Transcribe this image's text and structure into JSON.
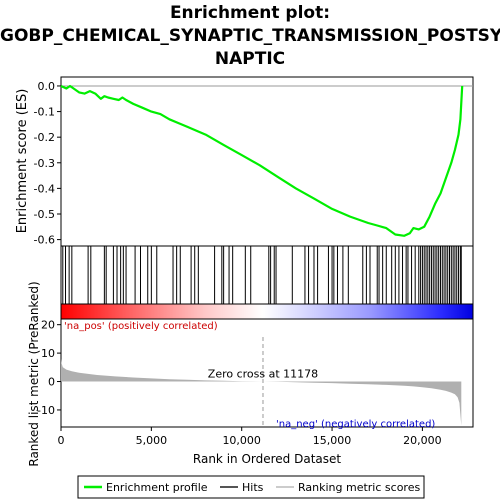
{
  "title_lines": [
    "Enrichment plot:",
    "GOBP_CHEMICAL_SYNAPTIC_TRANSMISSION_POSTSY",
    "NAPTIC"
  ],
  "colors": {
    "es_line": "#00ee00",
    "hits": "#000000",
    "pos_label": "#cc0000",
    "neg_label": "#0000cc",
    "metric_fill": "#b0b0b0",
    "zero_cross_line": "#999999"
  },
  "chart_data": {
    "type": "line",
    "xlabel": "Rank in Ordered Dataset",
    "xlim": [
      0,
      22800
    ],
    "x_ticks": [
      0,
      5000,
      10000,
      15000,
      20000
    ],
    "x_tick_labels": [
      "0",
      "5,000",
      "10,000",
      "15,000",
      "20,000"
    ],
    "es_panel": {
      "ylabel": "Enrichment score (ES)",
      "ylim": [
        -0.625,
        0.035
      ],
      "y_ticks": [
        0.0,
        -0.1,
        -0.2,
        -0.3,
        -0.4,
        -0.5,
        -0.6
      ],
      "y_tick_labels": [
        "0.0",
        "-0.1",
        "-0.2",
        "-0.3",
        "-0.4",
        "-0.5",
        "-0.6"
      ],
      "series": [
        {
          "name": "Enrichment profile",
          "x": [
            0,
            300,
            500,
            700,
            1000,
            1300,
            1600,
            1900,
            2200,
            2400,
            2600,
            2900,
            3200,
            3400,
            3600,
            4000,
            4500,
            5000,
            5500,
            6000,
            6500,
            7000,
            7500,
            8000,
            9000,
            10000,
            11000,
            12000,
            13000,
            14000,
            15000,
            16000,
            17000,
            17500,
            18000,
            18500,
            19000,
            19300,
            19500,
            19800,
            20100,
            20400,
            20700,
            21000,
            21200,
            21400,
            21600,
            21800,
            22000,
            22100,
            22200
          ],
          "y": [
            0.0,
            -0.01,
            0.0,
            -0.01,
            -0.025,
            -0.03,
            -0.02,
            -0.03,
            -0.05,
            -0.04,
            -0.045,
            -0.05,
            -0.055,
            -0.045,
            -0.055,
            -0.07,
            -0.085,
            -0.1,
            -0.11,
            -0.13,
            -0.145,
            -0.16,
            -0.175,
            -0.19,
            -0.23,
            -0.27,
            -0.31,
            -0.355,
            -0.4,
            -0.44,
            -0.48,
            -0.51,
            -0.535,
            -0.545,
            -0.555,
            -0.58,
            -0.585,
            -0.575,
            -0.555,
            -0.56,
            -0.55,
            -0.51,
            -0.46,
            -0.42,
            -0.38,
            -0.34,
            -0.3,
            -0.25,
            -0.19,
            -0.13,
            0.0
          ]
        }
      ]
    },
    "hits_x": [
      100,
      250,
      450,
      600,
      1500,
      1650,
      2400,
      2500,
      2900,
      3100,
      3300,
      3450,
      3600,
      4100,
      4400,
      4800,
      5000,
      5300,
      6200,
      6400,
      6600,
      7200,
      7400,
      7600,
      8500,
      8900,
      9000,
      9300,
      9500,
      10200,
      10500,
      11500,
      11600,
      11800,
      11900,
      12800,
      13500,
      13700,
      14000,
      14200,
      14800,
      15000,
      15100,
      15300,
      15600,
      15900,
      16700,
      16900,
      17100,
      17500,
      17600,
      17800,
      18000,
      18300,
      18500,
      18700,
      18900,
      19100,
      19200,
      19400,
      19600,
      19800,
      19900,
      20000,
      20100,
      20200,
      20300,
      20400,
      20500,
      20600,
      20700,
      20800,
      20900,
      21000,
      21100,
      21200,
      21300,
      21400,
      21500,
      21600,
      21700,
      21800,
      21900,
      22000,
      22100,
      22150
    ],
    "metric_panel": {
      "ylabel": "Ranked list metric (PreRanked)",
      "ylim": [
        -16,
        22
      ],
      "y_ticks": [
        20,
        10,
        0,
        -10
      ],
      "y_tick_labels": [
        "20",
        "10",
        "0",
        "-10"
      ],
      "zero_cross": 11178,
      "zero_cross_label": "Zero cross at 11178",
      "pos_label": "'na_pos' (positively correlated)",
      "neg_label": "'na_neg' (negatively correlated)",
      "x": [
        0,
        30,
        100,
        300,
        600,
        1000,
        1500,
        2000,
        3000,
        4000,
        5000,
        6000,
        7000,
        8000,
        9000,
        10000,
        11178,
        12000,
        13000,
        14000,
        15000,
        16000,
        17000,
        18000,
        19000,
        19500,
        20000,
        20500,
        21000,
        21300,
        21600,
        21800,
        21950,
        22050,
        22150
      ],
      "y": [
        8.0,
        6.5,
        5.0,
        4.2,
        3.6,
        3.1,
        2.7,
        2.3,
        1.8,
        1.4,
        1.1,
        0.8,
        0.6,
        0.4,
        0.25,
        0.12,
        0.0,
        -0.1,
        -0.25,
        -0.4,
        -0.55,
        -0.75,
        -0.95,
        -1.2,
        -1.5,
        -1.7,
        -2.0,
        -2.4,
        -2.9,
        -3.3,
        -3.9,
        -4.5,
        -5.5,
        -7.5,
        -15.5
      ]
    },
    "legend": [
      {
        "label": "Enrichment profile",
        "kind": "line",
        "color": "#00ee00"
      },
      {
        "label": "Hits",
        "kind": "line",
        "color": "#555555"
      },
      {
        "label": "Ranking metric scores",
        "kind": "line",
        "color": "#cccccc"
      }
    ]
  }
}
